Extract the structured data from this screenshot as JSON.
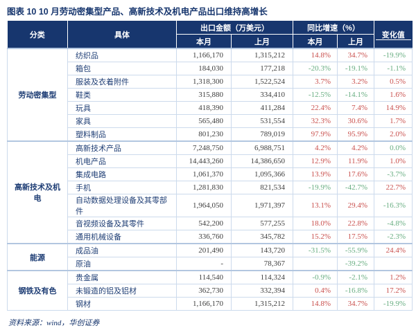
{
  "title": "图表 10  10 月劳动密集型产品、高新技术及机电产品出口维持高增长",
  "source": "资料来源：wind，华创证券",
  "colors": {
    "header_bg": "#17366e",
    "title_text": "#17366e",
    "item_text": "#1f3e75",
    "positive": "#c94f4c",
    "negative": "#67ad80",
    "grid_border": "#ccdaec"
  },
  "table": {
    "headers": {
      "category": "分类",
      "item": "具体",
      "export_group": "出口金额（万美元）",
      "yoy_group": "同比增速（%）",
      "change": "变化值",
      "this_month": "本月",
      "last_month": "上月"
    }
  },
  "chart_data": {
    "type": "table",
    "title": "图表 10  10 月劳动密集型产品、高新技术及机电产品出口维持高增长",
    "columns": [
      "分类",
      "具体",
      "出口金额（万美元）本月",
      "出口金额（万美元）上月",
      "同比增速（%）本月",
      "同比增速（%）上月",
      "变化值"
    ],
    "groups": [
      {
        "category": "劳动密集型",
        "rows": [
          [
            "纺织品",
            "1,166,170",
            "1,315,212",
            "14.8%",
            "34.7%",
            "-19.9%"
          ],
          [
            "箱包",
            "184,030",
            "177,218",
            "-20.3%",
            "-19.1%",
            "-1.1%"
          ],
          [
            "服装及衣着附件",
            "1,318,300",
            "1,522,524",
            "3.7%",
            "3.2%",
            "0.5%"
          ],
          [
            "鞋类",
            "315,880",
            "334,410",
            "-12.5%",
            "-14.1%",
            "1.6%"
          ],
          [
            "玩具",
            "418,390",
            "411,284",
            "22.4%",
            "7.4%",
            "14.9%"
          ],
          [
            "家具",
            "565,480",
            "531,554",
            "32.3%",
            "30.6%",
            "1.7%"
          ],
          [
            "塑料制品",
            "801,230",
            "789,019",
            "97.9%",
            "95.9%",
            "2.0%"
          ]
        ]
      },
      {
        "category": "高新技术及机电",
        "rows": [
          [
            "高新技术产品",
            "7,248,750",
            "6,988,751",
            "4.2%",
            "4.2%",
            "0.0%"
          ],
          [
            "机电产品",
            "14,443,260",
            "14,386,650",
            "12.9%",
            "11.9%",
            "1.0%"
          ],
          [
            "集成电路",
            "1,061,370",
            "1,095,366",
            "13.9%",
            "17.6%",
            "-3.7%"
          ],
          [
            "手机",
            "1,281,830",
            "821,534",
            "-19.9%",
            "-42.7%",
            "22.7%"
          ],
          [
            "自动数据处理设备及其零部件",
            "1,964,050",
            "1,971,397",
            "13.1%",
            "29.4%",
            "-16.3%"
          ],
          [
            "音视频设备及其零件",
            "542,200",
            "577,255",
            "18.0%",
            "22.8%",
            "-4.8%"
          ],
          [
            "通用机械设备",
            "336,760",
            "345,782",
            "15.2%",
            "17.5%",
            "-2.3%"
          ]
        ]
      },
      {
        "category": "能源",
        "rows": [
          [
            "成品油",
            "201,490",
            "143,720",
            "-31.5%",
            "-55.9%",
            "24.4%"
          ],
          [
            "原油",
            "-",
            "78,367",
            "",
            "-39.2%",
            ""
          ]
        ]
      },
      {
        "category": "钢铁及有色",
        "rows": [
          [
            "贵金属",
            "114,540",
            "114,324",
            "-0.9%",
            "-2.1%",
            "1.2%"
          ],
          [
            "未锻造的铝及铝材",
            "362,730",
            "332,394",
            "0.4%",
            "-16.8%",
            "17.2%"
          ],
          [
            "钢材",
            "1,166,170",
            "1,315,212",
            "14.8%",
            "34.7%",
            "-19.9%"
          ]
        ]
      }
    ]
  }
}
